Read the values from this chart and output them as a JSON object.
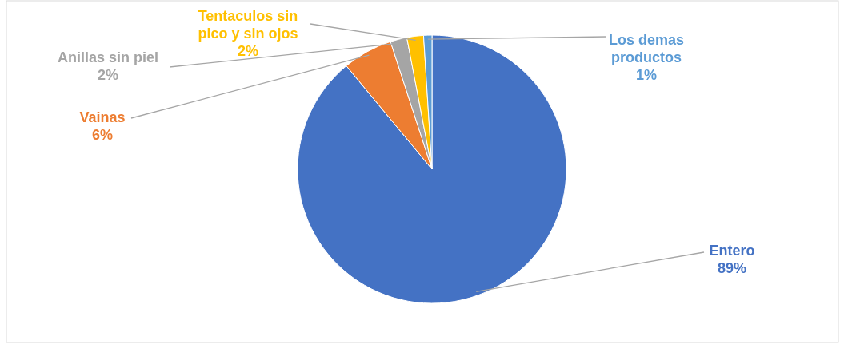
{
  "chart_data": {
    "type": "pie",
    "categories": [
      "Entero",
      "Vainas",
      "Anillas sin piel",
      "Tentaculos sin pico y sin ojos",
      "Los demas productos"
    ],
    "values": [
      89,
      6,
      2,
      2,
      1
    ],
    "colors": [
      "#4472c4",
      "#ed7d31",
      "#a5a5a5",
      "#ffc000",
      "#5b9bd5"
    ],
    "value_labels": [
      "89%",
      "6%",
      "2%",
      "2%",
      "1%"
    ]
  }
}
